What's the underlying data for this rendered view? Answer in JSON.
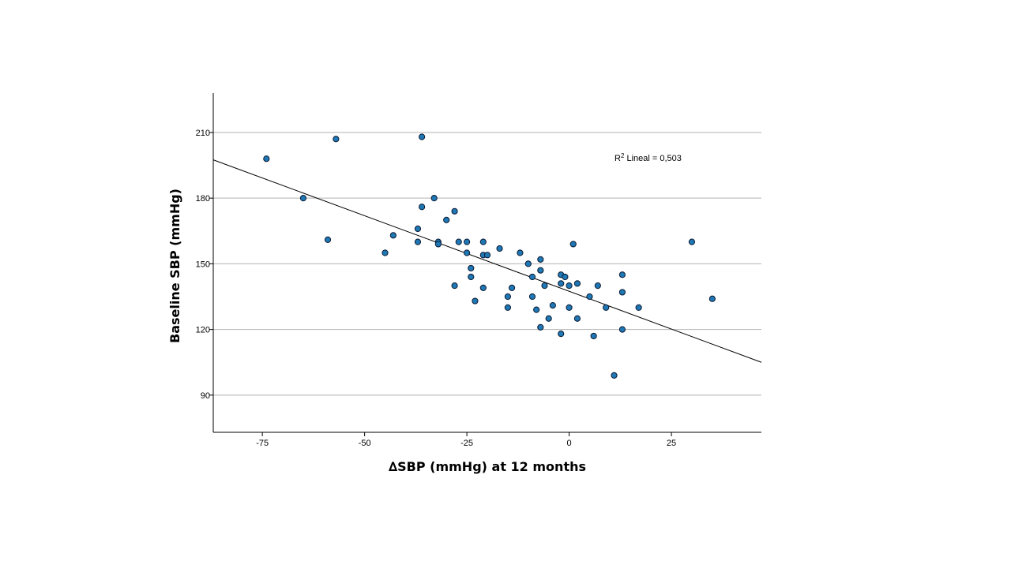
{
  "chart_data": {
    "type": "scatter",
    "title": "",
    "xlabel": "∆SBP (mmHg) at 12 months",
    "ylabel": "Baseline SBP (mmHg)",
    "xlim": [
      -87,
      47
    ],
    "ylim": [
      73,
      228
    ],
    "xticks": [
      -75,
      -50,
      -25,
      0,
      25
    ],
    "xtick_labels": [
      "-75",
      "-50",
      "-25",
      "0",
      "25"
    ],
    "yticks": [
      90,
      120,
      150,
      180,
      210
    ],
    "ytick_labels": [
      "90",
      "120",
      "150",
      "180",
      "210"
    ],
    "grid": "horizontal",
    "fit_line": {
      "label": "R² Lineal = 0,503",
      "r2_prefix": "R",
      "r2_sup": "2",
      "r2_text": " Lineal = 0,503",
      "x0": -87,
      "y0": 197.5,
      "x1": 47,
      "y1": 105
    },
    "points": [
      [
        -74,
        198
      ],
      [
        -65,
        180
      ],
      [
        -59,
        161
      ],
      [
        -57,
        207
      ],
      [
        -45,
        155
      ],
      [
        -43,
        163
      ],
      [
        -37,
        166
      ],
      [
        -37,
        160
      ],
      [
        -36,
        208
      ],
      [
        -36,
        176
      ],
      [
        -33,
        180
      ],
      [
        -32,
        160
      ],
      [
        -32,
        159
      ],
      [
        -30,
        170
      ],
      [
        -28,
        174
      ],
      [
        -28,
        140
      ],
      [
        -27,
        160
      ],
      [
        -25,
        160
      ],
      [
        -25,
        155
      ],
      [
        -24,
        148
      ],
      [
        -24,
        144
      ],
      [
        -23,
        133
      ],
      [
        -21,
        160
      ],
      [
        -21,
        154
      ],
      [
        -21,
        139
      ],
      [
        -20,
        154
      ],
      [
        -17,
        157
      ],
      [
        -15,
        135
      ],
      [
        -15,
        130
      ],
      [
        -14,
        139
      ],
      [
        -12,
        155
      ],
      [
        -10,
        150
      ],
      [
        -9,
        144
      ],
      [
        -9,
        135
      ],
      [
        -8,
        129
      ],
      [
        -7,
        152
      ],
      [
        -7,
        147
      ],
      [
        -7,
        121
      ],
      [
        -6,
        140
      ],
      [
        -5,
        125
      ],
      [
        -4,
        131
      ],
      [
        -2,
        145
      ],
      [
        -2,
        141
      ],
      [
        -2,
        118
      ],
      [
        -1,
        144
      ],
      [
        0,
        140
      ],
      [
        0,
        130
      ],
      [
        1,
        159
      ],
      [
        2,
        141
      ],
      [
        2,
        125
      ],
      [
        5,
        135
      ],
      [
        6,
        117
      ],
      [
        7,
        140
      ],
      [
        9,
        130
      ],
      [
        11,
        99
      ],
      [
        13,
        145
      ],
      [
        13,
        137
      ],
      [
        13,
        120
      ],
      [
        17,
        130
      ],
      [
        30,
        160
      ],
      [
        35,
        134
      ]
    ]
  }
}
